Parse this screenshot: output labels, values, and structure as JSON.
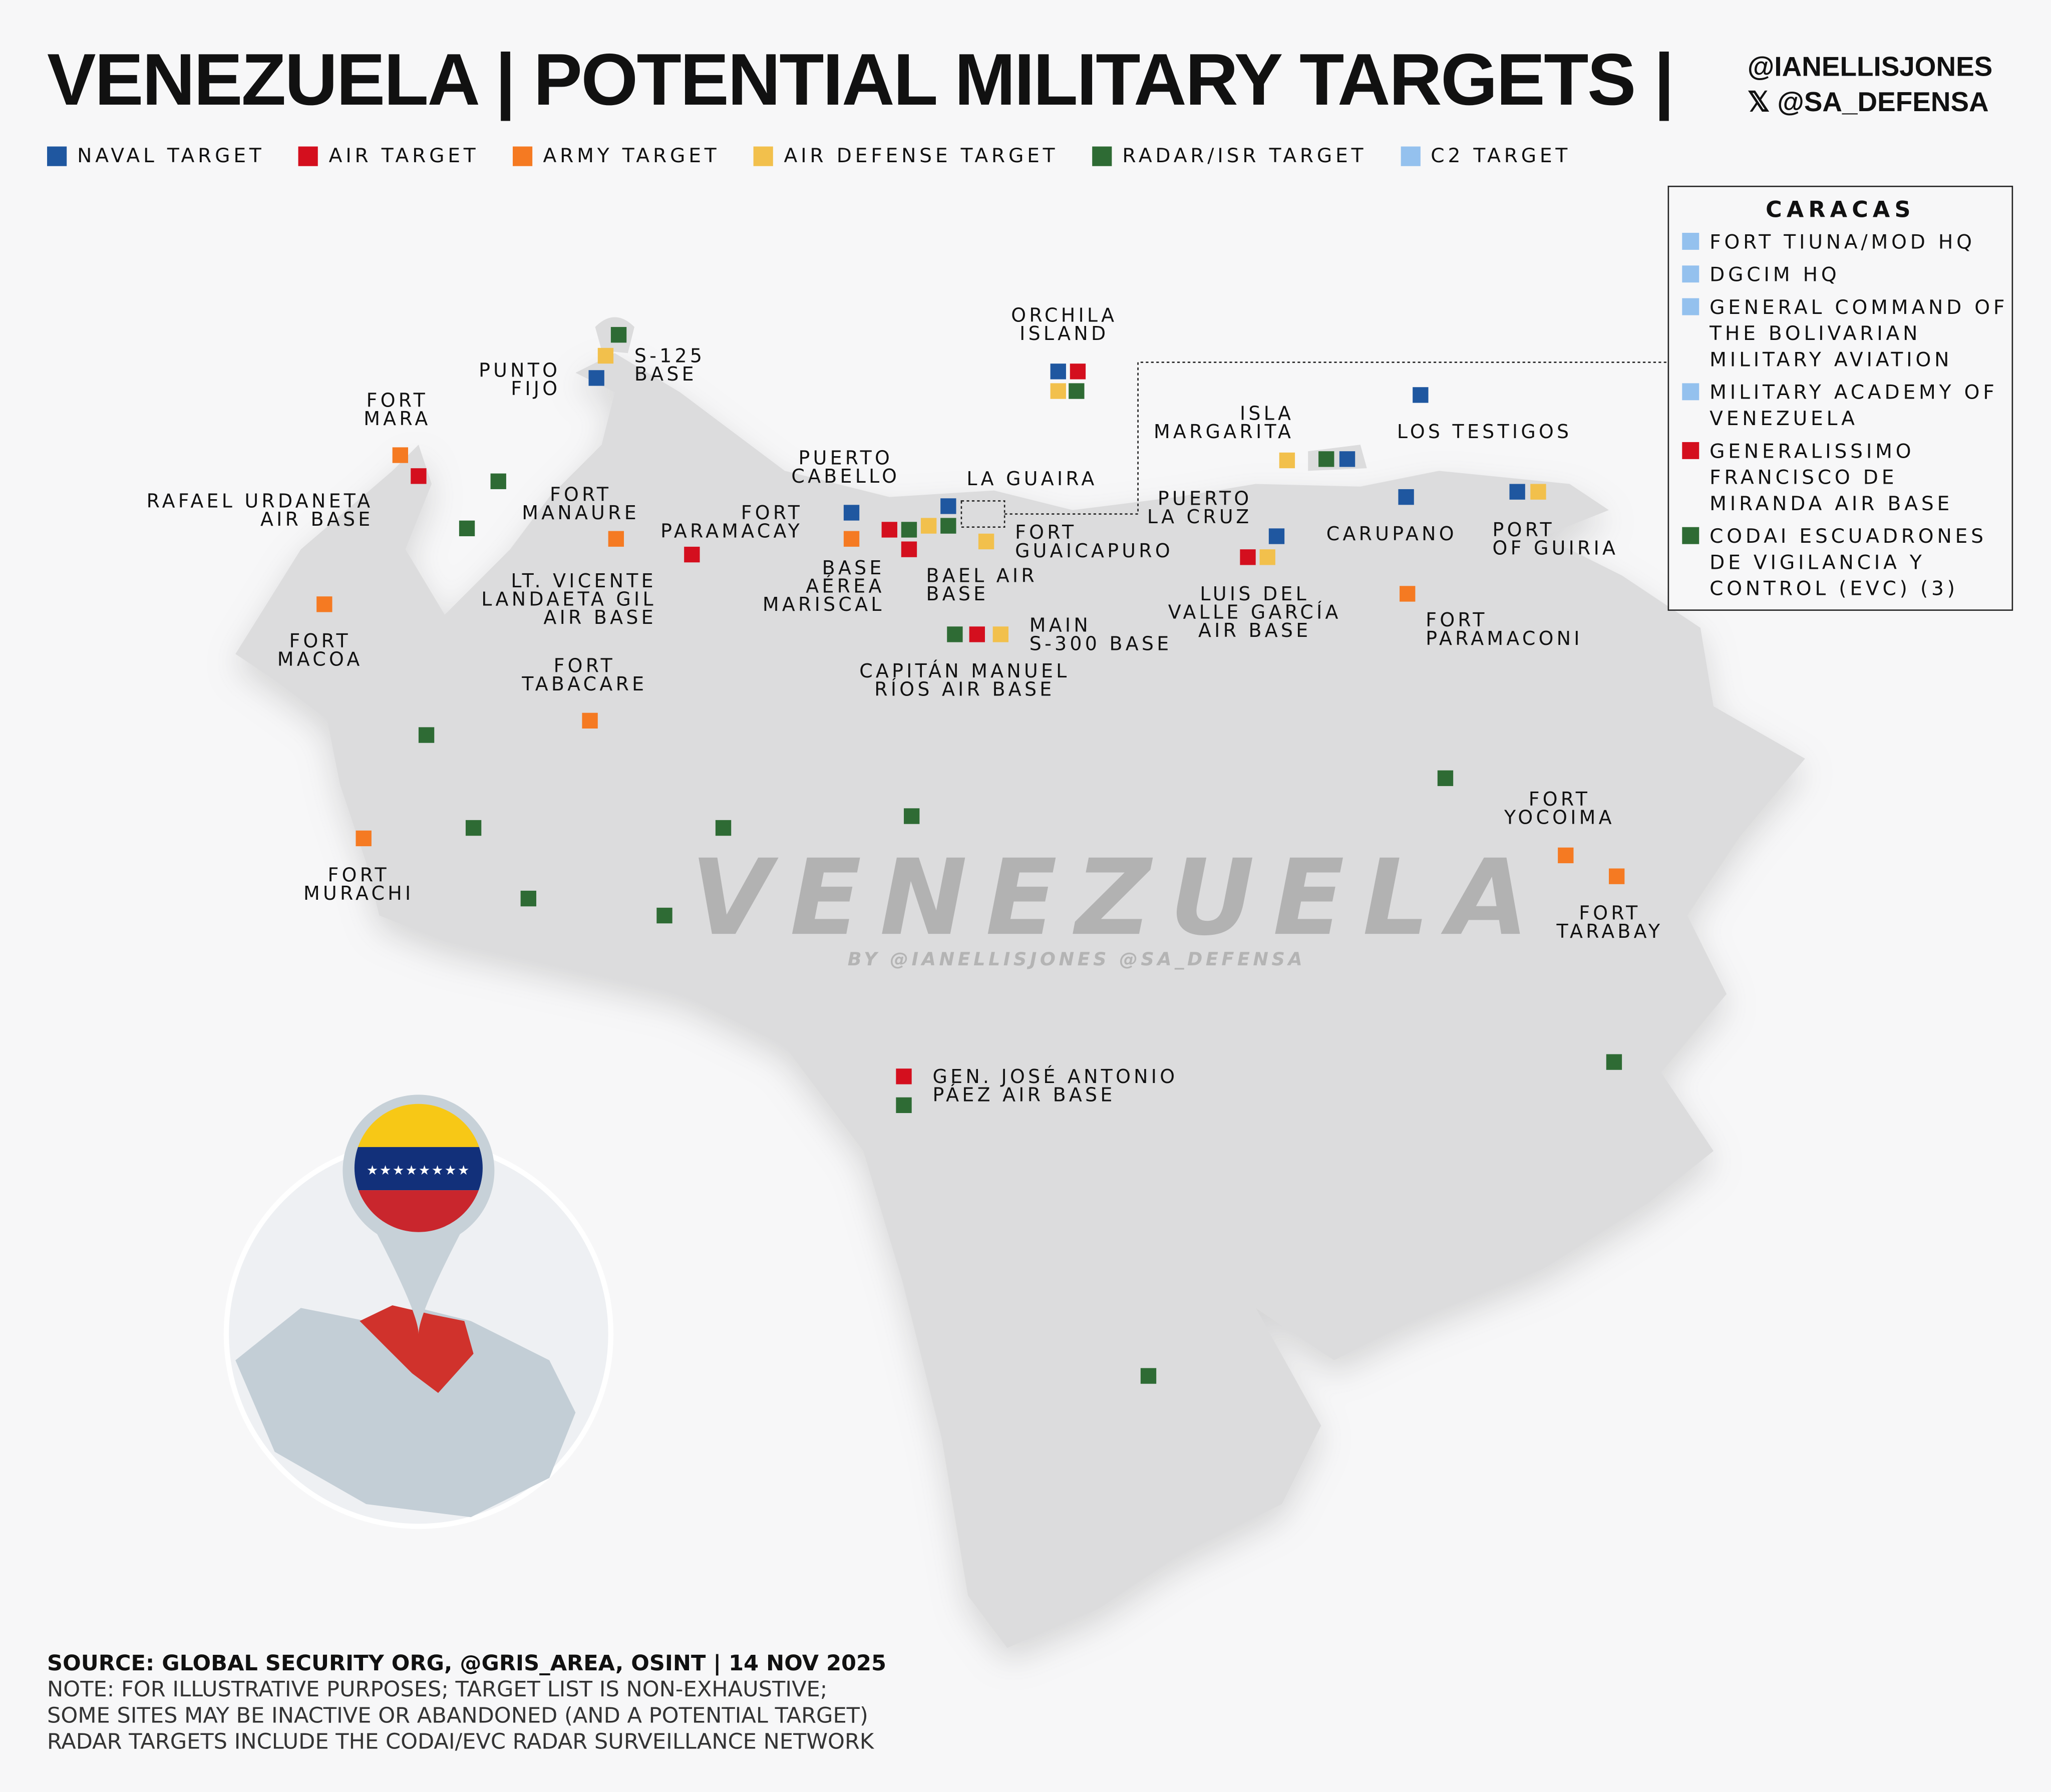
{
  "header": {
    "title": "VENEZUELA | POTENTIAL MILITARY TARGETS |",
    "handle1": "@IANELLISJONES",
    "handle2": "𝕏 @SA_DEFENSA"
  },
  "colors": {
    "naval": "#1f57a0",
    "air": "#d40f1e",
    "army": "#f57a22",
    "air_defense": "#f2c04c",
    "radar": "#2e6b34",
    "c2": "#94c1ee"
  },
  "legend": [
    "NAVAL TARGET",
    "AIR TARGET",
    "ARMY TARGET",
    "AIR DEFENSE TARGET",
    "RADAR/ISR TARGET",
    "C2 TARGET"
  ],
  "caracas": {
    "title": "CARACAS",
    "items": [
      {
        "type": "c2",
        "label": "FORT TIUNA/MOD HQ"
      },
      {
        "type": "c2",
        "label": "DGCIM HQ"
      },
      {
        "type": "c2",
        "label": "GENERAL COMMAND OF THE BOLIVARIAN MILITARY AVIATION"
      },
      {
        "type": "c2",
        "label": "MILITARY ACADEMY OF VENEZUELA"
      },
      {
        "type": "air",
        "label": "GENERALISSIMO FRANCISCO DE MIRANDA AIR BASE"
      },
      {
        "type": "radar",
        "label": "CODAI ESCUADRONES DE VIGILANCIA Y CONTROL (EVC) (3)"
      }
    ]
  },
  "sites": {
    "orchila": "ORCHILA\nISLAND",
    "s125": "S-125\nBASE",
    "punto_fijo": "PUNTO\nFIJO",
    "fort_mara": "FORT\nMARA",
    "urdaneta": "RAFAEL URDANETA\nAIR BASE",
    "manaure": "FORT\nMANAURE",
    "vicente": "LT. VICENTE\nLANDAETA GIL\nAIR BASE",
    "macoa": "FORT\nMACOA",
    "tabacare": "FORT\nTABACARE",
    "murachi": "FORT\nMURACHI",
    "puerto_cabello": "PUERTO\nCABELLO",
    "paramacay": "FORT\nPARAMACAY",
    "mariscal": "BASE\nAÉREA\nMARISCAL",
    "bael": "BAEL AIR\nBASE",
    "la_guaira": "LA GUAIRA",
    "guaicapuro": "FORT\nGUAICAPURO",
    "s300": "MAIN\nS-300 BASE",
    "rios": "CAPITÁN MANUEL\nRÍOS AIR BASE",
    "margarita": "ISLA\nMARGARITA",
    "testigos": "LOS TESTIGOS",
    "puerto_la_cruz": "PUERTO\nLA CRUZ",
    "carupano": "CARUPANO",
    "guiria": "PORT\nOF GUIRIA",
    "valle": "LUIS DEL\nVALLE GARCÍA\nAIR BASE",
    "paramaconi": "FORT\nPARAMACONI",
    "yocoima": "FORT\nYOCOIMA",
    "tarabay": "FORT\nTARABAY",
    "paez": "GEN. JOSÉ ANTONIO\nPÁEZ AIR BASE"
  },
  "watermark": {
    "main": "VENEZUELA",
    "by": "BY @IANELLISJONES @SA_DEFENSA"
  },
  "footer": {
    "source": "SOURCE: GLOBAL SECURITY ORG, @GRIS_AREA, OSINT | 14 NOV 2025",
    "note1": "NOTE: FOR ILLUSTRATIVE PURPOSES; TARGET LIST IS NON-EXHAUSTIVE;",
    "note2": "SOME SITES MAY BE INACTIVE OR ABANDONED (AND A POTENTIAL TARGET)",
    "note3": "RADAR TARGETS INCLUDE THE CODAI/EVC RADAR SURVEILLANCE NETWORK"
  }
}
